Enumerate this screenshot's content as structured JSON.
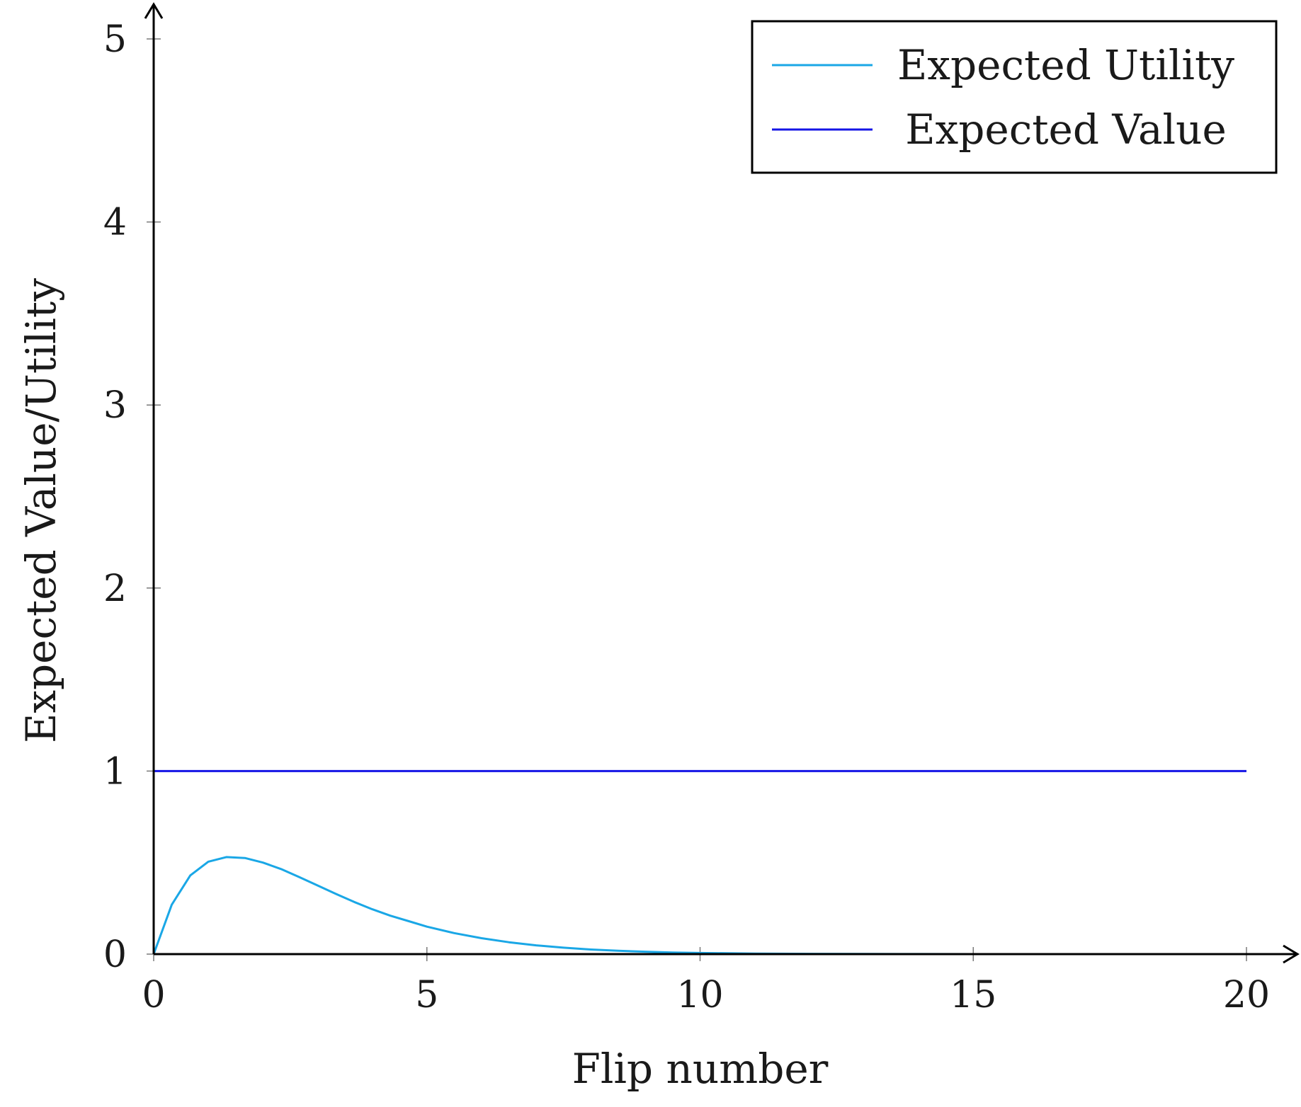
{
  "chart_data": {
    "type": "line",
    "title": "",
    "xlabel": "Flip number",
    "ylabel": "Expected Value/Utility",
    "xlim": [
      0,
      20
    ],
    "ylim": [
      0,
      5
    ],
    "xticks": [
      0,
      5,
      10,
      15,
      20
    ],
    "yticks": [
      0,
      1,
      2,
      3,
      4,
      5
    ],
    "grid": false,
    "legend_position": "top-right",
    "series": [
      {
        "name": "Expected Utility",
        "color": "#1aa7e6",
        "x": [
          0,
          0.33,
          0.67,
          1.0,
          1.33,
          1.67,
          2.0,
          2.33,
          2.67,
          3.0,
          3.33,
          3.67,
          4.0,
          4.33,
          4.67,
          5.0,
          5.5,
          6.0,
          6.5,
          7.0,
          7.5,
          8.0,
          8.5,
          9.0,
          9.5,
          10.0,
          11.0,
          12.0,
          13.0,
          14.0,
          15.0,
          16.0,
          17.0,
          18.0,
          19.0,
          20.0
        ],
        "y": [
          0,
          0.27,
          0.43,
          0.505,
          0.53,
          0.525,
          0.5,
          0.465,
          0.42,
          0.375,
          0.33,
          0.285,
          0.245,
          0.21,
          0.18,
          0.15,
          0.115,
          0.087,
          0.065,
          0.048,
          0.035,
          0.025,
          0.018,
          0.013,
          0.009,
          0.006,
          0.003,
          0.0015,
          0.0007,
          0.0003,
          0.0001,
          5e-05,
          2e-05,
          1e-05,
          0,
          0
        ]
      },
      {
        "name": "Expected Value",
        "color": "#1414e6",
        "x": [
          0,
          20
        ],
        "y": [
          1,
          1
        ]
      }
    ]
  }
}
